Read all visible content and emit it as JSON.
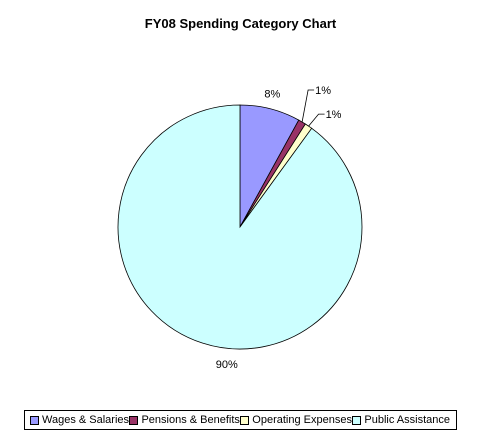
{
  "chart_data": {
    "type": "pie",
    "title": "FY08 Spending Category Chart",
    "legend_position": "bottom",
    "slices": [
      {
        "name": "Wages & Salaries",
        "value": 8,
        "label": "8%",
        "color": "#9999ff"
      },
      {
        "name": "Pensions & Benefits",
        "value": 1,
        "label": "1%",
        "color": "#993366"
      },
      {
        "name": "Operating Expenses",
        "value": 1,
        "label": "1%",
        "color": "#ffffcc"
      },
      {
        "name": "Public Assistance",
        "value": 90,
        "label": "90%",
        "color": "#ccffff"
      }
    ]
  }
}
